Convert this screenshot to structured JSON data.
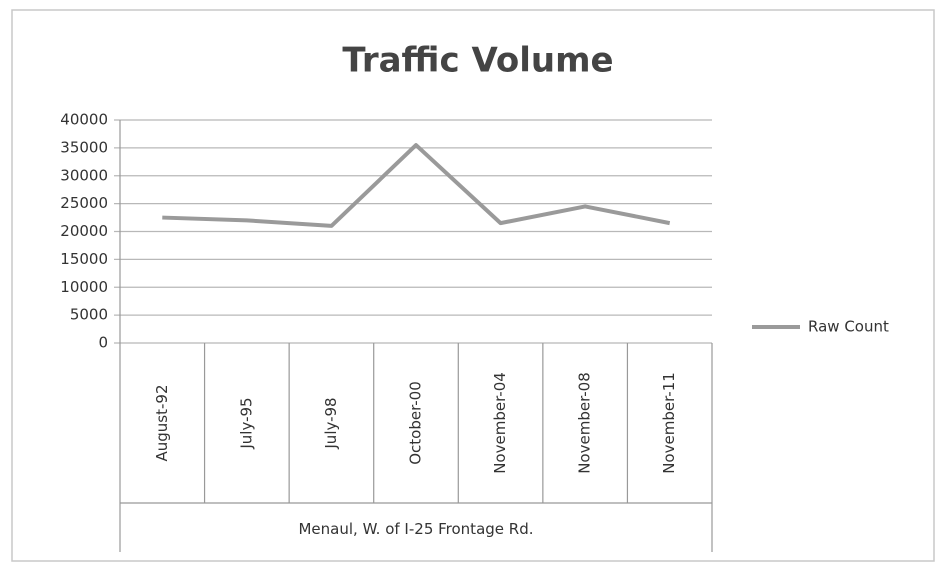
{
  "chart_data": {
    "type": "line",
    "title": "Traffic Volume",
    "categories": [
      "August-92",
      "July-95",
      "July-98",
      "October-00",
      "November-04",
      "November-08",
      "November-11"
    ],
    "category_group": "Menaul, W. of I-25 Frontage Rd.",
    "series": [
      {
        "name": "Raw Count",
        "color": "#9a9a9a",
        "values": [
          22500,
          22000,
          21000,
          35500,
          21500,
          24500,
          21500
        ]
      }
    ],
    "ylim": [
      0,
      40000
    ],
    "yticks": [
      0,
      5000,
      10000,
      15000,
      20000,
      25000,
      30000,
      35000,
      40000
    ],
    "grid": true,
    "legend": "right"
  }
}
